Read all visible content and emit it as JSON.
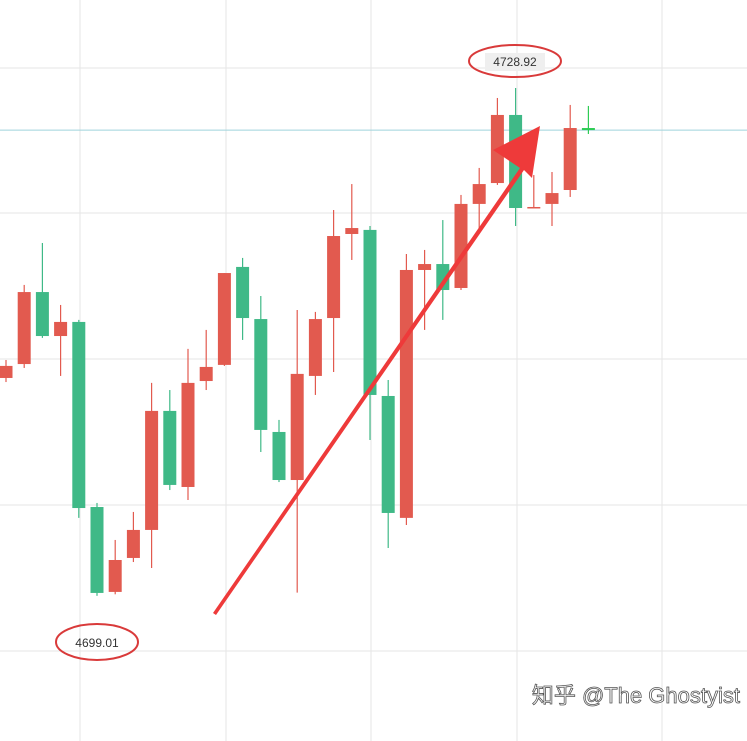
{
  "chart_data": {
    "type": "candlestick",
    "open": [
      4711.84,
      4712.66,
      4716.9,
      4714.31,
      4715.14,
      4704.24,
      4699.24,
      4701.24,
      4702.89,
      4709.9,
      4705.42,
      4711.66,
      4712.61,
      4718.38,
      4715.31,
      4708.66,
      4705.83,
      4711.96,
      4715.37,
      4720.32,
      4720.56,
      4710.78,
      4703.6,
      4718.2,
      4718.55,
      4717.14,
      4722.09,
      4723.32,
      4727.33,
      4721.85,
      4722.09,
      4722.91,
      4726.56
    ],
    "high": [
      4712.9,
      4717.32,
      4719.79,
      4716.14,
      4715.26,
      4704.48,
      4702.3,
      4703.95,
      4711.55,
      4711.13,
      4713.55,
      4714.67,
      4718.02,
      4718.91,
      4716.67,
      4709.37,
      4715.84,
      4715.73,
      4721.73,
      4723.26,
      4720.79,
      4711.72,
      4719.14,
      4719.38,
      4721.14,
      4722.62,
      4724.21,
      4728.33,
      4728.92,
      4723.79,
      4723.97,
      4727.92,
      4727.86
    ],
    "low": [
      4711.6,
      4712.43,
      4714.2,
      4711.96,
      4703.6,
      4699.01,
      4699.1,
      4701.0,
      4700.65,
      4705.24,
      4704.65,
      4711.13,
      4712.55,
      4714.08,
      4707.48,
      4705.71,
      4699.2,
      4710.84,
      4712.19,
      4718.79,
      4708.19,
      4701.83,
      4703.18,
      4714.67,
      4715.26,
      4717.02,
      4720.56,
      4723.21,
      4720.79,
      4721.85,
      4720.79,
      4722.5,
      4726.21
    ],
    "close": [
      4712.55,
      4716.9,
      4714.31,
      4715.14,
      4704.18,
      4699.18,
      4701.12,
      4702.89,
      4709.9,
      4705.54,
      4711.55,
      4712.49,
      4718.02,
      4715.37,
      4708.78,
      4705.83,
      4712.08,
      4715.31,
      4720.2,
      4720.67,
      4710.84,
      4703.89,
      4718.2,
      4718.55,
      4717.02,
      4722.09,
      4723.26,
      4727.33,
      4721.85,
      4721.91,
      4722.73,
      4726.56,
      4726.44
    ],
    "up_color": "#e25a4f",
    "down_color": "#3fb987",
    "last_color": "#2ecc55",
    "ylim": [
      4690.46,
      4734.1
    ],
    "watermark": "知乎 @The Ghostyist"
  }
}
